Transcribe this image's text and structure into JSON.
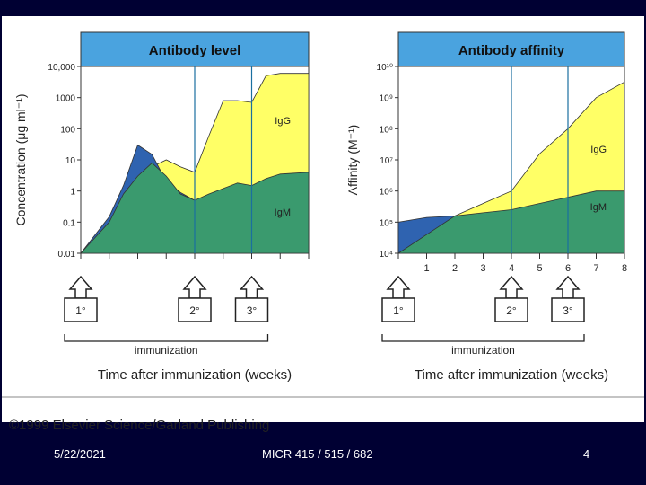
{
  "footer": {
    "date": "5/22/2021",
    "course": "MICR 415 / 515 / 682",
    "page": "4"
  },
  "copyright": "©1999 Elsevier Science/Garland Publishing",
  "colors": {
    "header": "#4aa3df",
    "igg": "#ffff66",
    "igm": "#3a9a6e",
    "early": "#2f63b0",
    "slide_bg": "#000033"
  },
  "chart_data": [
    {
      "type": "area",
      "title": "Antibody level",
      "ylabel": "Concentration (μg ml⁻¹)",
      "xlabel": "Time after immunization (weeks)",
      "yscale": "log",
      "ylim": [
        0.01,
        10000
      ],
      "xlim": [
        0,
        8
      ],
      "y_ticks": [
        "10,000",
        "1000",
        "100",
        "10",
        "1",
        "0.1",
        "0.01"
      ],
      "series": [
        {
          "name": "IgM",
          "x": [
            0,
            1,
            1.5,
            2,
            2.5,
            3,
            3.5,
            4,
            4.5,
            5,
            5.5,
            6,
            6.5,
            7,
            8
          ],
          "values": [
            0.01,
            0.1,
            0.8,
            3,
            8,
            3,
            0.8,
            0.5,
            0.8,
            1.2,
            1.8,
            1.5,
            2.5,
            3.5,
            4
          ]
        },
        {
          "name": "IgG",
          "x": [
            0,
            1,
            1.5,
            2,
            2.5,
            3,
            3.5,
            4,
            4.5,
            5,
            5.5,
            6,
            6.5,
            7,
            8
          ],
          "values": [
            0.01,
            0.05,
            0.3,
            1.5,
            6,
            10,
            6,
            4,
            60,
            800,
            800,
            700,
            5000,
            6000,
            6000
          ]
        },
        {
          "name": "",
          "x": [
            0,
            1,
            1.5,
            2,
            2.5,
            3,
            3.5,
            4
          ],
          "values": [
            0.01,
            0.15,
            1.5,
            30,
            15,
            2,
            0.9,
            0.5
          ]
        }
      ],
      "annotations": [
        "IgG",
        "IgM"
      ],
      "markers": [
        {
          "x": 0,
          "label": "1°"
        },
        {
          "x": 4,
          "label": "2°"
        },
        {
          "x": 6,
          "label": "3°"
        }
      ],
      "immunization_label": "immunization"
    },
    {
      "type": "area",
      "title": "Antibody affinity",
      "ylabel": "Affinity (M⁻¹)",
      "xlabel": "Time after immunization (weeks)",
      "yscale": "log",
      "ylim": [
        4,
        10
      ],
      "xlim": [
        0,
        8
      ],
      "y_ticks": [
        "10¹⁰",
        "10⁹",
        "10⁸",
        "10⁷",
        "10⁶",
        "10⁵",
        "10⁴"
      ],
      "x_ticks": [
        "1",
        "2",
        "3",
        "4",
        "5",
        "6",
        "7",
        "8"
      ],
      "series": [
        {
          "name": "IgM",
          "x": [
            0,
            1,
            2,
            3,
            4,
            5,
            6,
            7,
            8
          ],
          "values": [
            4,
            4.6,
            5.2,
            5.3,
            5.4,
            5.6,
            5.8,
            6.0,
            6.0
          ]
        },
        {
          "name": "IgG",
          "x": [
            0,
            1,
            2,
            3,
            4,
            5,
            6,
            7,
            8
          ],
          "values": [
            4,
            4.6,
            5.2,
            5.6,
            6.0,
            7.2,
            8.0,
            9.0,
            9.5
          ]
        },
        {
          "name": "",
          "x": [
            0,
            1,
            2
          ],
          "values": [
            5.0,
            5.15,
            5.2
          ]
        }
      ],
      "annotations": [
        "IgG",
        "IgM"
      ],
      "markers": [
        {
          "x": 0,
          "label": "1°"
        },
        {
          "x": 4,
          "label": "2°"
        },
        {
          "x": 6,
          "label": "3°"
        }
      ],
      "immunization_label": "immunization"
    }
  ]
}
